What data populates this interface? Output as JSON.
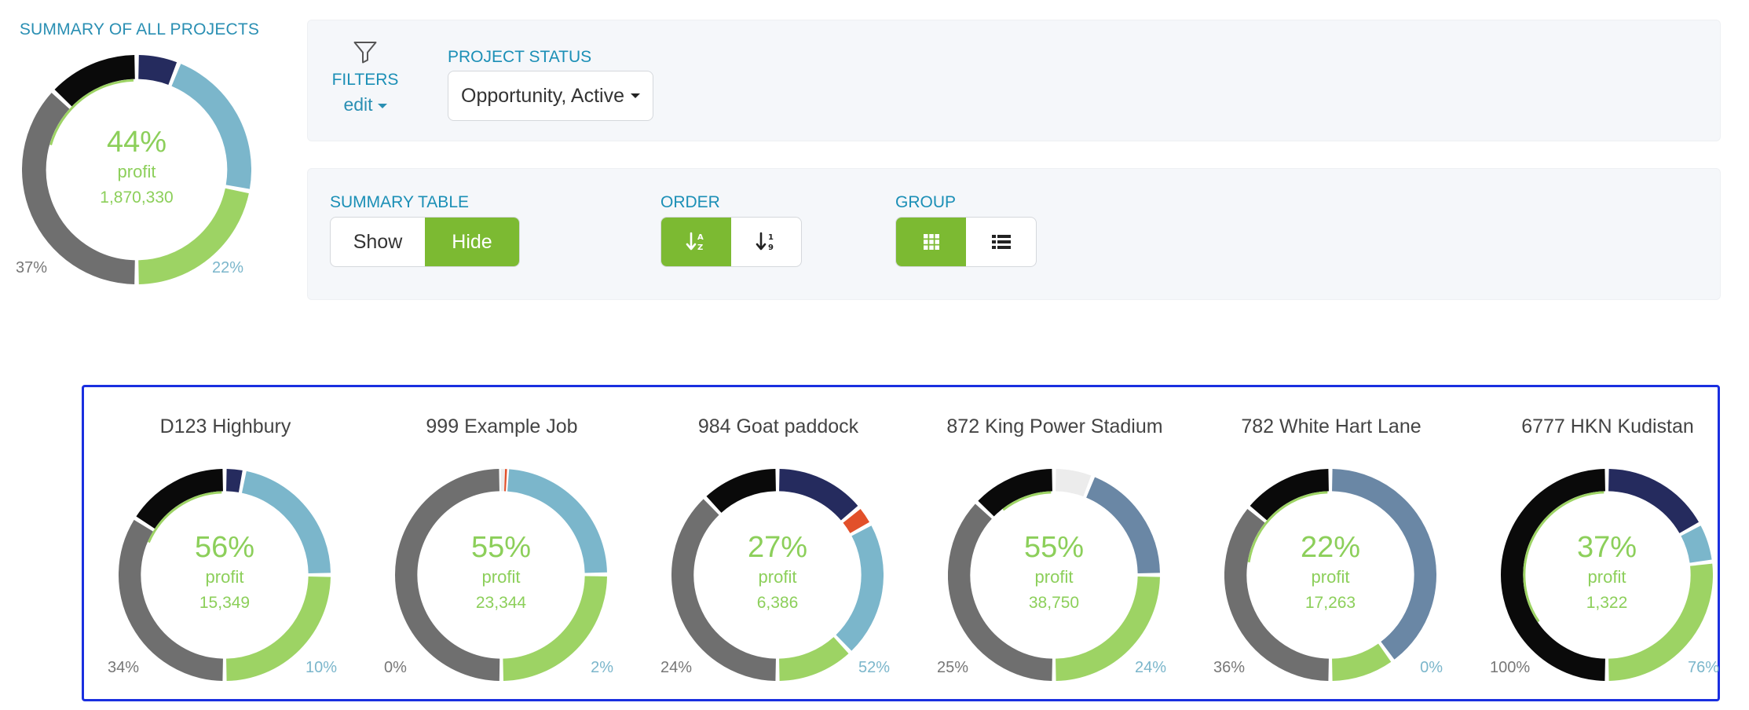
{
  "colors": {
    "navy": "#252b5e",
    "light_blue": "#7bb6cb",
    "steel_blue": "#6a87a5",
    "green": "#9dd364",
    "gray": "#6f6f6f",
    "black": "#0a0a0a",
    "light_gray": "#ececec",
    "red": "#e2502a",
    "accent_green": "#7cba32",
    "title_blue": "#1b8fb6"
  },
  "summary": {
    "title": "SUMMARY OF ALL PROJECTS",
    "percent": "44%",
    "label": "profit",
    "amount": "1,870,330",
    "left_pct": "37%",
    "right_pct": "22%",
    "segments": [
      {
        "color": "navy",
        "value": 6
      },
      {
        "color": "light_blue",
        "value": 22
      },
      {
        "color": "green",
        "value": 22
      },
      {
        "color": "gray",
        "value": 37
      },
      {
        "color": "black",
        "value": 13
      }
    ],
    "inner_arc": 20
  },
  "filters": {
    "icon": "filter-icon",
    "title": "FILTERS",
    "edit_label": "edit",
    "project_status_title": "PROJECT STATUS",
    "project_status_value": "Opportunity, Active"
  },
  "view": {
    "summary_table": {
      "title": "SUMMARY TABLE",
      "options": [
        "Show",
        "Hide"
      ],
      "active": 1
    },
    "order": {
      "title": "ORDER",
      "options": [
        "sort-alpha-icon",
        "sort-numeric-icon"
      ],
      "active": 0
    },
    "group": {
      "title": "GROUP",
      "options": [
        "grid-icon",
        "list-icon"
      ],
      "active": 0
    }
  },
  "projects": [
    {
      "name": "D123 Highbury",
      "percent": "56%",
      "label": "profit",
      "amount": "15,349",
      "left_pct": "34%",
      "right_pct": "10%",
      "segments": [
        {
          "color": "navy",
          "value": 3
        },
        {
          "color": "light_blue",
          "value": 22
        },
        {
          "color": "green",
          "value": 25
        },
        {
          "color": "gray",
          "value": 34
        },
        {
          "color": "black",
          "value": 16
        }
      ],
      "inner_arc": 18
    },
    {
      "name": "999 Example Job",
      "percent": "55%",
      "label": "profit",
      "amount": "23,344",
      "left_pct": "0%",
      "right_pct": "2%",
      "segments": [
        {
          "color": "light_gray",
          "value": 0.6
        },
        {
          "color": "red",
          "value": 0.3
        },
        {
          "color": "light_blue",
          "value": 24
        },
        {
          "color": "green",
          "value": 25
        },
        {
          "color": "gray",
          "value": 50
        }
      ],
      "inner_arc": 0
    },
    {
      "name": "984 Goat paddock",
      "percent": "27%",
      "label": "profit",
      "amount": "6,386",
      "left_pct": "24%",
      "right_pct": "52%",
      "segments": [
        {
          "color": "navy",
          "value": 14
        },
        {
          "color": "red",
          "value": 3
        },
        {
          "color": "light_blue",
          "value": 21
        },
        {
          "color": "green",
          "value": 12
        },
        {
          "color": "gray",
          "value": 38
        },
        {
          "color": "black",
          "value": 12
        }
      ],
      "inner_arc": 0
    },
    {
      "name": "872 King Power Stadium",
      "percent": "55%",
      "label": "profit",
      "amount": "38,750",
      "left_pct": "25%",
      "right_pct": "24%",
      "segments": [
        {
          "color": "light_gray",
          "value": 6
        },
        {
          "color": "steel_blue",
          "value": 19
        },
        {
          "color": "green",
          "value": 25
        },
        {
          "color": "gray",
          "value": 37
        },
        {
          "color": "black",
          "value": 13
        }
      ],
      "inner_arc": 10
    },
    {
      "name": "782 White Hart Lane",
      "percent": "22%",
      "label": "profit",
      "amount": "17,263",
      "left_pct": "36%",
      "right_pct": "0%",
      "segments": [
        {
          "color": "steel_blue",
          "value": 40
        },
        {
          "color": "green",
          "value": 10
        },
        {
          "color": "gray",
          "value": 36
        },
        {
          "color": "black",
          "value": 14
        }
      ],
      "inner_arc": 22
    },
    {
      "name": "6777 HKN Kudistan",
      "percent": "37%",
      "label": "profit",
      "amount": "1,322",
      "left_pct": "100%",
      "right_pct": "76%",
      "segments": [
        {
          "color": "navy",
          "value": 17
        },
        {
          "color": "light_blue",
          "value": 6
        },
        {
          "color": "green",
          "value": 27
        },
        {
          "color": "black",
          "value": 50
        }
      ],
      "inner_arc": 34
    }
  ]
}
